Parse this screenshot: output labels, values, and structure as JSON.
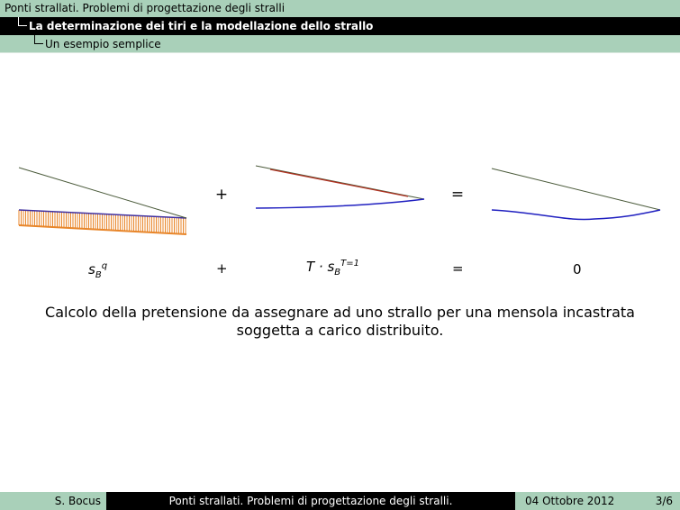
{
  "header": {
    "section": "Ponti strallati. Problemi di progettazione degli stralli",
    "subsection": "La determinazione dei tiri e la modellazione dello strallo",
    "frame": "Un esempio semplice"
  },
  "figure": {
    "operators": {
      "plus": "+",
      "equals": "="
    },
    "terms": {
      "term1_base": "s",
      "term1_sub": "B",
      "term1_sup": "q",
      "term2_prefix": "T · s",
      "term2_sub": "B",
      "term2_sup": "T=1",
      "result": "0"
    },
    "colors": {
      "cable": "#4a5a3a",
      "beam": "#2020c0",
      "load": "#e8862a",
      "tension": "#b03020"
    }
  },
  "caption": {
    "line1": "Calcolo della pretensione da assegnare ad uno strallo per una mensola incastrata",
    "line2": "soggetta a carico distribuito."
  },
  "footer": {
    "author": "S. Bocus",
    "title": "Ponti strallati. Problemi di progettazione degli stralli.",
    "date": "04 Ottobre 2012",
    "page": "3/6"
  }
}
